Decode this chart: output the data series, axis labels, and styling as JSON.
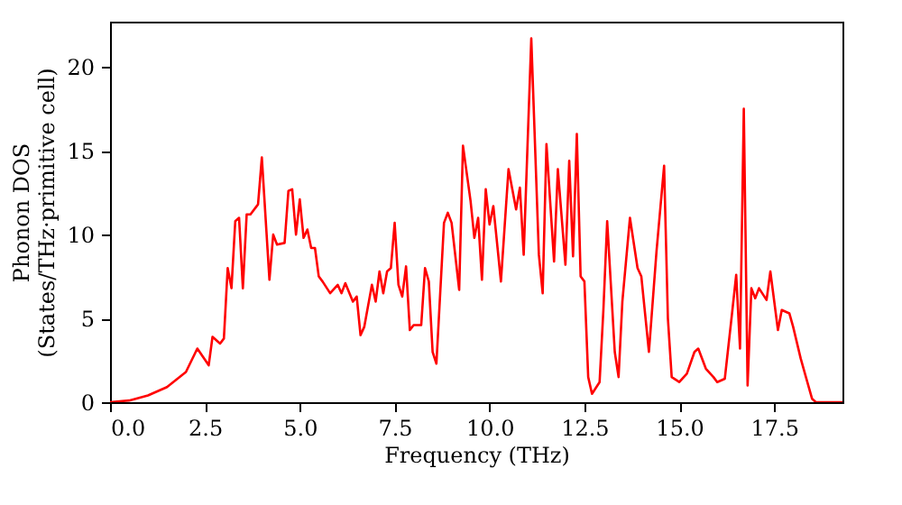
{
  "chart_data": {
    "type": "line",
    "xlabel": "Frequency (THz)",
    "ylabel": "Phonon DOS\n(States/THz·primitive cell)",
    "xlim": [
      0,
      19.3
    ],
    "ylim": [
      0,
      22.7
    ],
    "xticks": [
      {
        "value": 0,
        "label": "0.0"
      },
      2.5,
      {
        "value": 5,
        "label": "5.0"
      },
      7.5,
      {
        "value": 10,
        "label": "10.0"
      },
      12.5,
      {
        "value": 15,
        "label": "15.0"
      },
      17.5
    ],
    "yticks": [
      0,
      5,
      10,
      15,
      20
    ],
    "grid": false,
    "marker": "none",
    "line_style": "solid",
    "x": [
      0,
      0.5,
      1.0,
      1.5,
      2.0,
      2.3,
      2.6,
      2.7,
      2.9,
      3.0,
      3.1,
      3.2,
      3.3,
      3.4,
      3.5,
      3.6,
      3.7,
      3.9,
      4.0,
      4.2,
      4.3,
      4.4,
      4.6,
      4.7,
      4.8,
      4.9,
      5.0,
      5.1,
      5.2,
      5.3,
      5.4,
      5.5,
      5.6,
      5.8,
      6.0,
      6.1,
      6.2,
      6.4,
      6.5,
      6.6,
      6.7,
      6.9,
      7.0,
      7.1,
      7.2,
      7.3,
      7.4,
      7.5,
      7.6,
      7.7,
      7.8,
      7.9,
      8.0,
      8.2,
      8.3,
      8.4,
      8.5,
      8.6,
      8.8,
      8.9,
      9.0,
      9.2,
      9.3,
      9.5,
      9.6,
      9.7,
      9.8,
      9.9,
      10.0,
      10.1,
      10.3,
      10.5,
      10.7,
      10.8,
      10.9,
      11.1,
      11.3,
      11.4,
      11.5,
      11.7,
      11.8,
      12.0,
      12.1,
      12.2,
      12.3,
      12.4,
      12.5,
      12.6,
      12.7,
      12.9,
      13.0,
      13.1,
      13.3,
      13.4,
      13.5,
      13.7,
      13.9,
      14.0,
      14.2,
      14.4,
      14.6,
      14.7,
      14.8,
      15.0,
      15.2,
      15.4,
      15.5,
      15.7,
      15.9,
      16.0,
      16.2,
      16.4,
      16.5,
      16.6,
      16.7,
      16.8,
      16.9,
      17.0,
      17.1,
      17.3,
      17.4,
      17.6,
      17.7,
      17.9,
      18.0,
      18.2,
      18.3,
      18.5,
      18.6,
      19.3
    ],
    "series": [
      {
        "color": "#ff0000",
        "values": [
          0,
          0.1,
          0.4,
          0.9,
          1.8,
          3.2,
          2.2,
          3.9,
          3.5,
          3.8,
          8.0,
          6.8,
          10.8,
          11.0,
          6.8,
          11.2,
          11.2,
          11.8,
          14.6,
          7.3,
          10.0,
          9.4,
          9.5,
          12.6,
          12.7,
          10.0,
          12.1,
          9.8,
          10.3,
          9.2,
          9.2,
          7.5,
          7.2,
          6.5,
          7.0,
          6.5,
          7.1,
          6.0,
          6.3,
          4.0,
          4.5,
          7.0,
          6.0,
          7.8,
          6.5,
          7.8,
          8.0,
          10.7,
          7.0,
          6.3,
          8.1,
          4.3,
          4.6,
          4.6,
          8.0,
          7.2,
          3.0,
          2.3,
          10.7,
          11.3,
          10.7,
          6.7,
          15.3,
          12.0,
          9.8,
          11.0,
          7.3,
          12.7,
          10.6,
          11.7,
          7.2,
          13.9,
          11.5,
          12.8,
          8.8,
          21.7,
          8.8,
          6.5,
          15.4,
          8.4,
          13.9,
          8.2,
          14.4,
          8.7,
          16.0,
          7.5,
          7.2,
          1.5,
          0.5,
          1.2,
          5.5,
          10.8,
          3.0,
          1.5,
          6.0,
          11.0,
          8.0,
          7.5,
          3.0,
          9.0,
          14.1,
          5.0,
          1.5,
          1.2,
          1.7,
          3.0,
          3.2,
          2.0,
          1.5,
          1.2,
          1.4,
          5.5,
          7.6,
          3.2,
          17.5,
          1.0,
          6.8,
          6.2,
          6.8,
          6.1,
          7.8,
          4.3,
          5.5,
          5.3,
          4.5,
          2.6,
          1.8,
          0.2,
          0,
          0
        ]
      }
    ]
  }
}
